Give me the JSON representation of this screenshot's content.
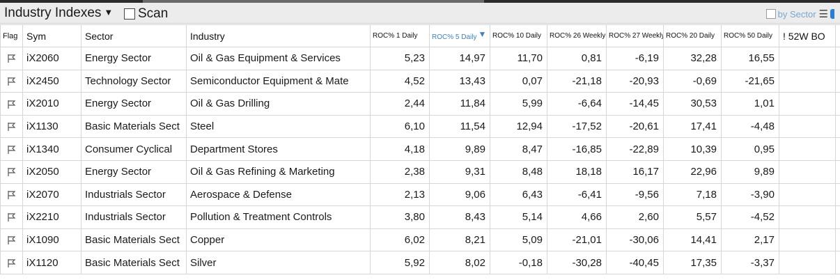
{
  "header": {
    "title": "Industry Indexes",
    "scan_label": "Scan",
    "by_sector_label": "by Sector"
  },
  "columns": {
    "flag": "Flag",
    "sym": "Sym",
    "sector": "Sector",
    "industry": "Industry",
    "roc1d": "ROC% 1 Daily",
    "roc5d": "ROC% 5 Daily",
    "roc10d": "ROC% 10 Daily",
    "roc26w": "ROC% 26 Weekly",
    "roc27w": "ROC% 27 Weekly",
    "roc20d": "ROC% 20 Daily",
    "roc50d": "ROC% 50 Daily",
    "bo52w": "! 52W BO"
  },
  "rows": [
    {
      "sym": "iX2060",
      "sector": "Energy Sector",
      "industry": "Oil & Gas Equipment & Services",
      "roc1d": "5,23",
      "roc5d": "14,97",
      "roc10d": "11,70",
      "roc26w": "0,81",
      "roc27w": "-6,19",
      "roc20d": "32,28",
      "roc50d": "16,55"
    },
    {
      "sym": "iX2450",
      "sector": "Technology Sector",
      "industry": "Semiconductor Equipment & Mate",
      "roc1d": "4,52",
      "roc5d": "13,43",
      "roc10d": "0,07",
      "roc26w": "-21,18",
      "roc27w": "-20,93",
      "roc20d": "-0,69",
      "roc50d": "-21,65"
    },
    {
      "sym": "iX2010",
      "sector": "Energy Sector",
      "industry": "Oil & Gas Drilling",
      "roc1d": "2,44",
      "roc5d": "11,84",
      "roc10d": "5,99",
      "roc26w": "-6,64",
      "roc27w": "-14,45",
      "roc20d": "30,53",
      "roc50d": "1,01"
    },
    {
      "sym": "iX1130",
      "sector": "Basic Materials Sect",
      "industry": "Steel",
      "roc1d": "6,10",
      "roc5d": "11,54",
      "roc10d": "12,94",
      "roc26w": "-17,52",
      "roc27w": "-20,61",
      "roc20d": "17,41",
      "roc50d": "-4,48"
    },
    {
      "sym": "iX1340",
      "sector": "Consumer Cyclical",
      "industry": "Department Stores",
      "roc1d": "4,18",
      "roc5d": "9,89",
      "roc10d": "8,47",
      "roc26w": "-16,85",
      "roc27w": "-22,89",
      "roc20d": "10,39",
      "roc50d": "0,95"
    },
    {
      "sym": "iX2050",
      "sector": "Energy Sector",
      "industry": "Oil & Gas Refining & Marketing",
      "roc1d": "2,38",
      "roc5d": "9,31",
      "roc10d": "8,48",
      "roc26w": "18,18",
      "roc27w": "16,17",
      "roc20d": "22,96",
      "roc50d": "9,89"
    },
    {
      "sym": "iX2070",
      "sector": "Industrials Sector",
      "industry": "Aerospace & Defense",
      "roc1d": "2,13",
      "roc5d": "9,06",
      "roc10d": "6,43",
      "roc26w": "-6,41",
      "roc27w": "-9,56",
      "roc20d": "7,18",
      "roc50d": "-3,90"
    },
    {
      "sym": "iX2210",
      "sector": "Industrials Sector",
      "industry": "Pollution & Treatment Controls",
      "roc1d": "3,80",
      "roc5d": "8,43",
      "roc10d": "5,14",
      "roc26w": "4,66",
      "roc27w": "2,60",
      "roc20d": "5,57",
      "roc50d": "-4,52"
    },
    {
      "sym": "iX1090",
      "sector": "Basic Materials Sect",
      "industry": "Copper",
      "roc1d": "6,02",
      "roc5d": "8,21",
      "roc10d": "5,09",
      "roc26w": "-21,01",
      "roc27w": "-30,06",
      "roc20d": "14,41",
      "roc50d": "2,17"
    },
    {
      "sym": "iX1120",
      "sector": "Basic Materials Sect",
      "industry": "Silver",
      "roc1d": "5,92",
      "roc5d": "8,02",
      "roc10d": "-0,18",
      "roc26w": "-30,28",
      "roc27w": "-40,45",
      "roc20d": "17,35",
      "roc50d": "-3,37"
    }
  ],
  "colors": {
    "accent": "#3f82c2",
    "by_sector": "#74a7d6",
    "grid_line": "#d6d6d6",
    "title_bar": "#ececec"
  }
}
